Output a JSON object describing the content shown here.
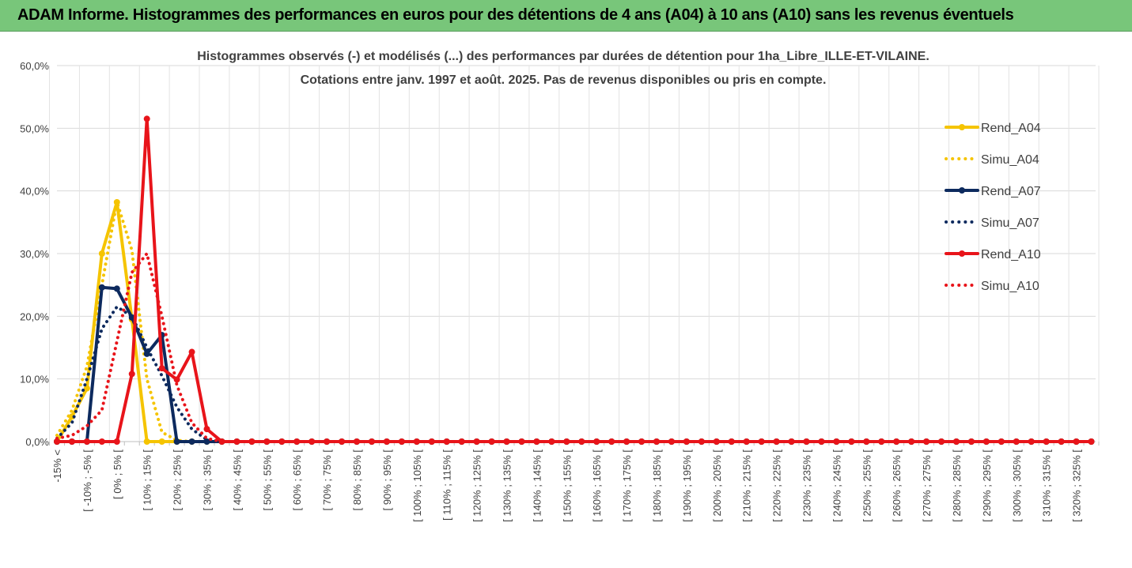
{
  "banner": {
    "title": "ADAM Informe. Histogrammes des performances en euros pour des détentions de 4 ans (A04) à 10 ans (A10) sans les revenus éventuels"
  },
  "chart_data": {
    "type": "line",
    "title_line1": "Histogrammes observés (-) et modélisés (...) des performances par durées de détention pour 1ha_Libre_ILLE-ET-VILAINE.",
    "title_line2": "Cotations entre janv. 1997 et août. 2025. Pas de revenus disponibles ou pris en compte.",
    "ylim": [
      0,
      60
    ],
    "y_ticks": [
      "0,0%",
      "10,0%",
      "20,0%",
      "30,0%",
      "40,0%",
      "50,0%",
      "60,0%"
    ],
    "x_tick_labels": [
      "-15% <",
      "[ -10% ; -5% [",
      "[ 0% ; 5% [",
      "[ 10% ; 15% [",
      "[ 20% ; 25% [",
      "[ 30% ; 35% [",
      "[ 40% ; 45% [",
      "[ 50% ; 55% [",
      "[ 60% ; 65% [",
      "[ 70% ; 75% [",
      "[ 80% ; 85% [",
      "[ 90% ; 95% [",
      "[ 100% ; 105% [",
      "[ 110% ; 115% [",
      "[ 120% ; 125% [",
      "[ 130% ; 135% [",
      "[ 140% ; 145% [",
      "[ 150% ; 155% [",
      "[ 160% ; 165% [",
      "[ 170% ; 175% [",
      "[ 180% ; 185% [",
      "[ 190% ; 195% [",
      "[ 200% ; 205% [",
      "[ 210% ; 215% [",
      "[ 220% ; 225% [",
      "[ 230% ; 235% [",
      "[ 240% ; 245% [",
      "[ 250% ; 255% [",
      "[ 260% ; 265% [",
      "[ 270% ; 275% [",
      "[ 280% ; 285% [",
      "[ 290% ; 295% [",
      "[ 300% ; 305% [",
      "[ 310% ; 315% [",
      "[ 320% ; 325% ["
    ],
    "n_bins": 70,
    "grid": true,
    "legend_position": "right",
    "series": [
      {
        "name": "Rend_A04",
        "style": "solid",
        "markers": true,
        "color": "#f5c400",
        "width": 4,
        "values": [
          0,
          4,
          8.5,
          30,
          38.2,
          19.5,
          0,
          0,
          0
        ]
      },
      {
        "name": "Simu_A04",
        "style": "dotted",
        "markers": false,
        "color": "#f5c400",
        "width": 4,
        "values": [
          1,
          5,
          12,
          25,
          38.3,
          30.5,
          10,
          1.5,
          0.2
        ]
      },
      {
        "name": "Rend_A07",
        "style": "solid",
        "markers": true,
        "color": "#0d2a5e",
        "width": 4,
        "values": [
          0,
          0,
          0,
          24.6,
          24.4,
          19.8,
          14,
          17,
          0,
          0,
          0
        ]
      },
      {
        "name": "Simu_A07",
        "style": "dotted",
        "markers": false,
        "color": "#0d2a5e",
        "width": 4,
        "values": [
          0.5,
          3,
          10,
          18,
          21.5,
          20,
          15,
          10.5,
          5.5,
          2,
          0.3
        ]
      },
      {
        "name": "Rend_A10",
        "style": "solid",
        "markers": true,
        "color": "#e8141a",
        "width": 4,
        "values": [
          0,
          0,
          0,
          0,
          0,
          10.8,
          51.5,
          11.7,
          9.9,
          14.3,
          2,
          0
        ]
      },
      {
        "name": "Simu_A10",
        "style": "dotted",
        "markers": false,
        "color": "#e8141a",
        "width": 4,
        "values": [
          0.5,
          1,
          2.5,
          5,
          16,
          27,
          30,
          20,
          9,
          3,
          0.5,
          0
        ]
      }
    ]
  }
}
